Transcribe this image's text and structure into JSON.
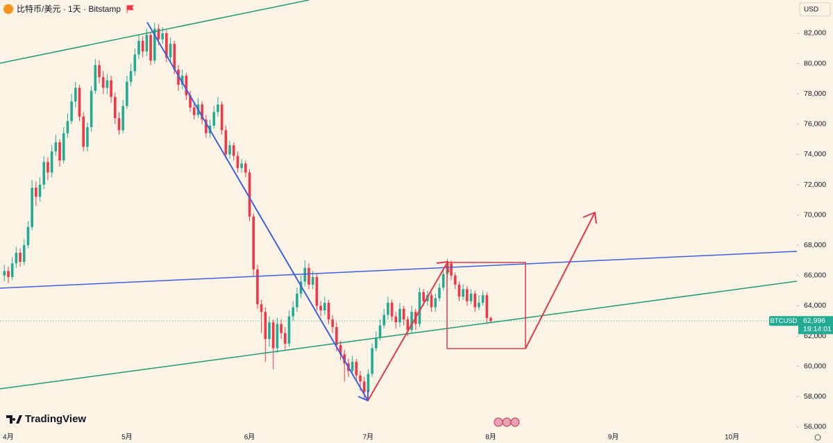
{
  "chart_data": {
    "type": "candlestick",
    "title": "比特币/美元 · 1天 · Bitstamp",
    "currency": "USD",
    "symbol": "BTCUSD",
    "last_price": {
      "value": 62996,
      "label": "62,996"
    },
    "countdown": "19:14:01",
    "brand": "TradingView",
    "up_color": "#22ab94",
    "down_color": "#f23645",
    "open": [
      66000,
      66300,
      65900,
      66800,
      67500,
      66900,
      68000,
      69200,
      71800,
      71200,
      72000,
      73500,
      72800,
      74200,
      74800,
      73600,
      75400,
      76200,
      77500,
      78400,
      76500,
      74500,
      75800,
      78200,
      79900,
      79100,
      78400,
      78900,
      77800,
      76400,
      75600,
      77200,
      78800,
      79500,
      80600,
      81500,
      80800,
      81900,
      80200,
      82300,
      81600,
      82000,
      80400,
      81300,
      79600,
      78600,
      79200,
      77900,
      77100,
      76600,
      77300,
      76300,
      75400,
      75900,
      76800,
      77300,
      75600,
      74000,
      74600,
      73900,
      73100,
      73400,
      72800,
      69900,
      66400,
      64100,
      63600,
      61800,
      62900,
      61200,
      62800,
      62200,
      61500,
      63300,
      63900,
      64800,
      65600,
      66500,
      65400,
      65900,
      64000,
      63700,
      64200,
      63100,
      62600,
      61400,
      60800,
      60200,
      59700,
      60300,
      59400,
      59000,
      58300,
      59500,
      61200,
      61900,
      62700,
      63400,
      64200,
      63300,
      62900,
      63800,
      63100,
      62400,
      63600,
      62800,
      64900,
      64300,
      64700,
      63900,
      64500,
      65200,
      66100,
      66800,
      66000,
      65400,
      64600,
      65100,
      64300,
      64800,
      63900,
      64200,
      64700,
      63200
    ],
    "high": [
      66700,
      66600,
      67200,
      67900,
      67800,
      68400,
      69600,
      72300,
      72200,
      72500,
      73900,
      73800,
      74600,
      75300,
      75000,
      75800,
      76700,
      78000,
      78800,
      78600,
      76800,
      76100,
      78500,
      80300,
      80200,
      79500,
      79300,
      79200,
      78100,
      76800,
      77600,
      79200,
      80000,
      81000,
      81900,
      81800,
      82300,
      82100,
      82700,
      82600,
      82400,
      82200,
      81700,
      81500,
      79900,
      79600,
      79400,
      78200,
      77400,
      77700,
      77500,
      76600,
      76300,
      77200,
      77800,
      77500,
      75900,
      74900,
      74800,
      74200,
      73700,
      73600,
      73000,
      70100,
      66700,
      64400,
      63900,
      63300,
      63100,
      63200,
      63100,
      62600,
      63700,
      64300,
      65200,
      66000,
      67000,
      66800,
      66300,
      66100,
      64300,
      64600,
      64400,
      63400,
      62900,
      61700,
      61100,
      60500,
      60700,
      60500,
      59700,
      59300,
      59800,
      61500,
      62300,
      63100,
      63800,
      64600,
      64400,
      63600,
      64200,
      64000,
      63300,
      64000,
      63800,
      65200,
      65100,
      65000,
      64900,
      64800,
      65500,
      66500,
      67100,
      67000,
      66200,
      65600,
      65400,
      65300,
      65100,
      65000,
      64700,
      65000,
      64900,
      63300
    ],
    "low": [
      65600,
      65500,
      65700,
      66500,
      66600,
      66700,
      67800,
      69000,
      70600,
      70900,
      71700,
      72300,
      72500,
      73900,
      73200,
      73400,
      75100,
      76000,
      77100,
      76200,
      74200,
      74200,
      75500,
      78000,
      78700,
      78000,
      78000,
      77400,
      76000,
      75300,
      75400,
      77000,
      78500,
      79200,
      80300,
      80400,
      80500,
      79900,
      80000,
      81200,
      81300,
      80100,
      80100,
      79300,
      78200,
      78300,
      77600,
      76800,
      76300,
      76400,
      76000,
      75100,
      75100,
      75700,
      76500,
      75300,
      73700,
      73700,
      73600,
      72800,
      72800,
      72500,
      69600,
      66000,
      63800,
      62200,
      60300,
      61300,
      59800,
      60900,
      61800,
      61100,
      61300,
      63000,
      63600,
      64500,
      65300,
      65100,
      65100,
      63700,
      63300,
      63400,
      62800,
      62200,
      61000,
      60400,
      59000,
      59300,
      59400,
      59000,
      58400,
      57800,
      58000,
      59300,
      61000,
      61700,
      62500,
      63100,
      63000,
      62500,
      62600,
      62700,
      62000,
      62200,
      62400,
      62600,
      64000,
      64000,
      63600,
      63600,
      64300,
      65000,
      65900,
      65700,
      65100,
      64300,
      64400,
      64000,
      64100,
      63600,
      63700,
      64000,
      62800,
      62900
    ],
    "close": [
      66300,
      65900,
      66800,
      67500,
      66900,
      68000,
      69200,
      71800,
      71200,
      72000,
      73500,
      72800,
      74200,
      74800,
      73600,
      75400,
      76200,
      77500,
      78400,
      76500,
      74500,
      75800,
      78200,
      79900,
      79100,
      78400,
      78900,
      77800,
      76400,
      75600,
      77200,
      78800,
      79500,
      80600,
      81500,
      80800,
      81900,
      80200,
      82300,
      81600,
      82000,
      80400,
      81300,
      79600,
      78600,
      79200,
      77900,
      77100,
      76600,
      77300,
      76300,
      75400,
      75900,
      76800,
      77300,
      75600,
      74000,
      74600,
      73900,
      73100,
      73400,
      72800,
      69900,
      66400,
      64100,
      63600,
      61800,
      62900,
      61200,
      62800,
      62200,
      61500,
      63300,
      63900,
      64800,
      65600,
      66500,
      65400,
      65900,
      64000,
      63700,
      64200,
      63100,
      62600,
      61400,
      60800,
      60200,
      59700,
      60300,
      59400,
      59000,
      58300,
      59500,
      61200,
      61900,
      62700,
      63400,
      64200,
      63300,
      62900,
      63800,
      63100,
      62400,
      63600,
      62800,
      64900,
      64300,
      64700,
      63900,
      64500,
      65200,
      66100,
      66800,
      66000,
      65400,
      64600,
      65100,
      64300,
      64800,
      63900,
      64200,
      64700,
      63200,
      62996
    ],
    "xlim": [
      -1.1,
      200.4
    ],
    "xticks": [
      {
        "value": 1,
        "label": "4月"
      },
      {
        "value": 31,
        "label": "5月"
      },
      {
        "value": 62,
        "label": "6月"
      },
      {
        "value": 92,
        "label": "7月"
      },
      {
        "value": 123,
        "label": "8月"
      },
      {
        "value": 154,
        "label": "9月"
      },
      {
        "value": 184,
        "label": "10月"
      }
    ],
    "ylim": [
      55670,
      84200
    ],
    "yticks": [
      {
        "value": 56000,
        "label": "56,000"
      },
      {
        "value": 58000,
        "label": "58,000"
      },
      {
        "value": 60000,
        "label": "60,000"
      },
      {
        "value": 62000,
        "label": "62,000"
      },
      {
        "value": 64000,
        "label": "64,000"
      },
      {
        "value": 66000,
        "label": "66,000"
      },
      {
        "value": 68000,
        "label": "68,000"
      },
      {
        "value": 70000,
        "label": "70,000"
      },
      {
        "value": 72000,
        "label": "72,000"
      },
      {
        "value": 74000,
        "label": "74,000"
      },
      {
        "value": 76000,
        "label": "76,000"
      },
      {
        "value": 78000,
        "label": "78,000"
      },
      {
        "value": 80000,
        "label": "80,000"
      },
      {
        "value": 82000,
        "label": "82,000"
      }
    ]
  }
}
